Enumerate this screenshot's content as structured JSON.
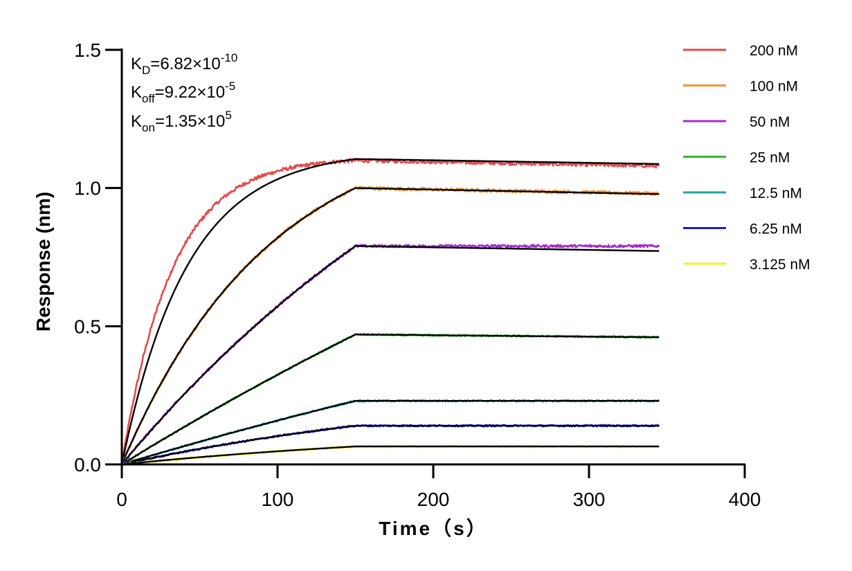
{
  "chart_data": {
    "type": "line",
    "title": "",
    "xlabel": "Time（s）",
    "ylabel": "Response (nm)",
    "xlim": [
      0,
      400
    ],
    "ylim": [
      0,
      1.5
    ],
    "x_ticks": [
      "0",
      "100",
      "200",
      "300",
      "400"
    ],
    "y_ticks": [
      "0.0",
      "0.5",
      "1.0",
      "1.5"
    ],
    "grid": false,
    "legend_position": "top-right",
    "association_end": 150,
    "dissociation_end": 345,
    "kinetics": {
      "kd": {
        "name": "K",
        "sub": "D",
        "value": "=6.82×10",
        "exp": "-10"
      },
      "koff": {
        "name": "K",
        "sub": "off",
        "value": "=9.22×10",
        "exp": "-5"
      },
      "kon": {
        "name": "K",
        "sub": "on",
        "value": "=1.35×10",
        "exp": "5"
      }
    },
    "series": [
      {
        "name": "200 nM",
        "color": "#e8474a",
        "plateau": 1.1,
        "end_value": 1.08,
        "tau": 32
      },
      {
        "name": "100 nM",
        "color": "#f39530",
        "plateau": 1.0,
        "end_value": 0.98,
        "tau": 95
      },
      {
        "name": "50 nM",
        "color": "#a42bd0",
        "plateau": 0.79,
        "end_value": 0.79,
        "tau": 280
      },
      {
        "name": "25 nM",
        "color": "#2cbc2c",
        "plateau": 0.47,
        "end_value": 0.46,
        "tau": 700
      },
      {
        "name": "12.5 nM",
        "color": "#1fa3a3",
        "plateau": 0.23,
        "end_value": 0.23,
        "tau": 700
      },
      {
        "name": "6.25 nM",
        "color": "#1b1bd4",
        "plateau": 0.14,
        "end_value": 0.14,
        "tau": 250
      },
      {
        "name": "3.125 nM",
        "color": "#f2f21c",
        "plateau": 0.065,
        "end_value": 0.065,
        "tau": 250
      }
    ],
    "fit_color": "#000000"
  }
}
